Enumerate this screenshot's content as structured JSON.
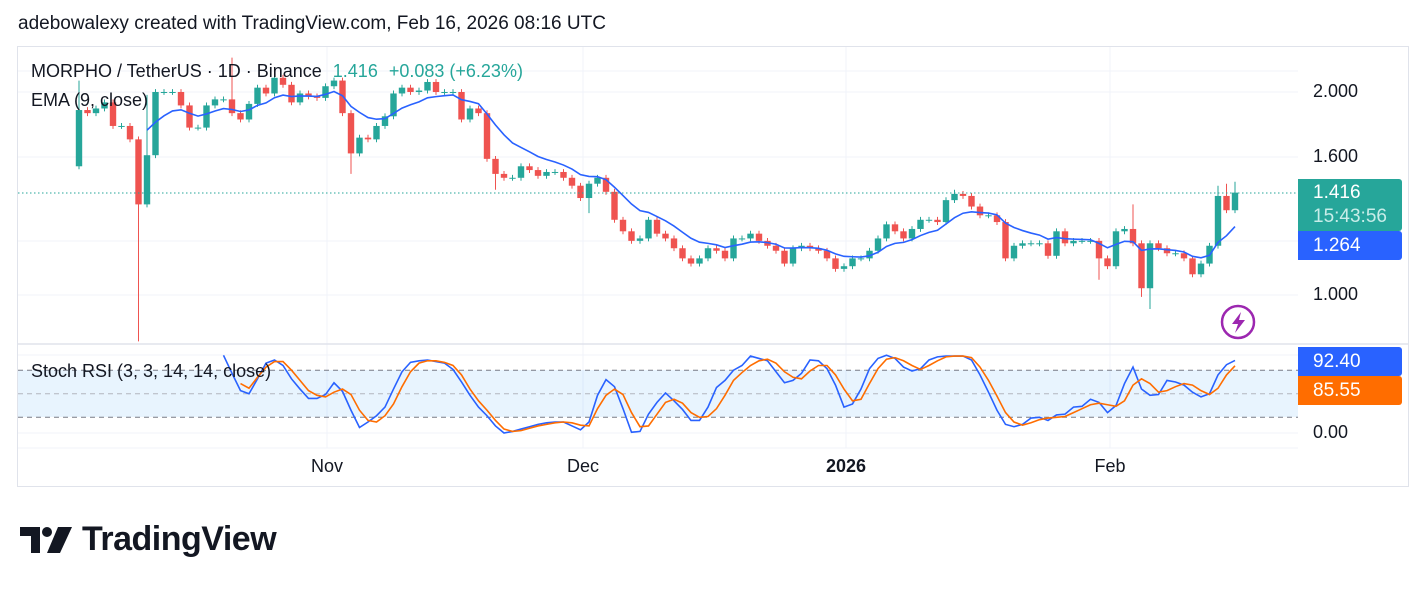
{
  "header": {
    "attribution": "adebowalexy created with TradingView.com, Feb 16, 2026 08:16 UTC"
  },
  "legend": {
    "symbol": "MORPHO / TetherUS · 1D · Binance",
    "last_price": "1.416",
    "change": "+0.083 (+6.23%)",
    "ema_title": "EMA (9, close)",
    "stoch_title": "Stoch RSI (3, 3, 14, 14, close)"
  },
  "price_axis": {
    "ticks": [
      "2.000",
      "1.600",
      "1.000"
    ],
    "last_price": "1.416",
    "countdown": "15:43:56",
    "ema_value": "1.264"
  },
  "stoch_axis": {
    "ticks": [
      "0.00"
    ],
    "k_value": "92.40",
    "d_value": "85.55"
  },
  "time_axis": {
    "ticks": [
      "Nov",
      "Dec",
      "2026",
      "Feb"
    ]
  },
  "icons": {
    "alert": "lightning-icon",
    "logo": "tradingview-logo"
  },
  "logo": {
    "text": "TradingView"
  },
  "colors": {
    "up": "#26a69a",
    "down": "#ef5350",
    "ema": "#2962ff",
    "stoch_k": "#2962ff",
    "stoch_d": "#ff6d00",
    "alert": "#9c27b0"
  },
  "chart_data": [
    {
      "type": "candlestick",
      "symbol": "MORPHO / TetherUS",
      "interval": "1D",
      "x_range": [
        "2025-10-03",
        "2026-02-16"
      ],
      "y_scale": "log",
      "ylim": [
        0.85,
        2.25
      ],
      "grid": true,
      "first_open": 1.55,
      "close": [
        1.88,
        1.86,
        1.89,
        1.93,
        1.78,
        1.78,
        1.7,
        1.36,
        1.61,
        2.0,
        2.0,
        2.0,
        1.91,
        1.77,
        1.77,
        1.91,
        1.95,
        1.95,
        1.86,
        1.82,
        1.92,
        2.03,
        1.99,
        2.1,
        2.05,
        1.93,
        1.99,
        1.97,
        1.96,
        2.04,
        2.08,
        1.86,
        1.62,
        1.71,
        1.7,
        1.78,
        1.84,
        1.99,
        2.03,
        2.0,
        2.01,
        2.07,
        2.0,
        2.0,
        2.0,
        1.82,
        1.89,
        1.86,
        1.59,
        1.51,
        1.49,
        1.49,
        1.55,
        1.53,
        1.5,
        1.52,
        1.52,
        1.49,
        1.45,
        1.39,
        1.46,
        1.49,
        1.42,
        1.29,
        1.24,
        1.2,
        1.21,
        1.29,
        1.23,
        1.21,
        1.17,
        1.13,
        1.11,
        1.13,
        1.17,
        1.16,
        1.13,
        1.21,
        1.21,
        1.23,
        1.2,
        1.18,
        1.16,
        1.11,
        1.17,
        1.18,
        1.17,
        1.16,
        1.13,
        1.09,
        1.1,
        1.13,
        1.13,
        1.16,
        1.21,
        1.27,
        1.24,
        1.21,
        1.25,
        1.29,
        1.29,
        1.28,
        1.38,
        1.41,
        1.4,
        1.35,
        1.31,
        1.31,
        1.28,
        1.13,
        1.18,
        1.19,
        1.19,
        1.19,
        1.14,
        1.24,
        1.19,
        1.2,
        1.2,
        1.2,
        1.13,
        1.1,
        1.24,
        1.25,
        1.19,
        1.02,
        1.19,
        1.17,
        1.15,
        1.15,
        1.13,
        1.07,
        1.11,
        1.18,
        1.4,
        1.333,
        1.416
      ],
      "wicks": {
        "2025-10-03": {
          "high": 2.08
        },
        "2025-10-10": {
          "low": 0.85
        },
        "2025-10-11": {
          "high": 1.98
        },
        "2025-10-21": {
          "high": 2.25
        },
        "2025-11-04": {
          "low": 1.51
        },
        "2025-11-21": {
          "low": 1.43
        },
        "2025-12-02": {
          "low": 1.32
        },
        "2026-01-14": {
          "high": 1.43
        },
        "2026-01-31": {
          "low": 1.05
        },
        "2026-02-04": {
          "high": 1.36
        },
        "2026-02-05": {
          "low": 0.99
        },
        "2026-02-06": {
          "low": 0.95
        },
        "2026-02-14": {
          "high": 1.45
        },
        "2026-02-15": {
          "high": 1.46
        },
        "2026-02-16": {
          "high": 1.47
        }
      },
      "overlay": {
        "name": "EMA (9, close)",
        "period": 9,
        "last_value": 1.264
      }
    },
    {
      "type": "line",
      "title": "Stoch RSI (3, 3, 14, 14, close)",
      "ylim": [
        0,
        100
      ],
      "bands": [
        80,
        50,
        20
      ],
      "k": [
        null,
        null,
        null,
        null,
        null,
        null,
        null,
        null,
        null,
        null,
        null,
        null,
        null,
        null,
        null,
        null,
        null,
        99,
        76,
        54,
        50,
        69,
        89,
        93,
        86,
        69,
        56,
        44,
        44,
        49,
        64,
        53,
        29,
        7,
        14,
        22,
        33,
        56,
        78,
        90,
        92,
        93,
        91,
        89,
        81,
        65,
        48,
        33,
        22,
        9,
        0,
        2,
        5,
        8,
        11,
        13,
        14,
        14,
        9,
        4,
        14,
        48,
        68,
        59,
        31,
        1,
        2,
        24,
        39,
        51,
        41,
        30,
        16,
        16,
        33,
        58,
        67,
        80,
        86,
        98,
        95,
        92,
        78,
        64,
        67,
        76,
        93,
        92,
        82,
        61,
        33,
        37,
        56,
        82,
        95,
        99,
        95,
        84,
        79,
        82,
        93,
        97,
        98,
        98,
        98,
        93,
        74,
        52,
        29,
        11,
        8,
        11,
        19,
        20,
        16,
        23,
        24,
        33,
        34,
        43,
        39,
        26,
        35,
        63,
        84,
        56,
        48,
        49,
        67,
        65,
        61,
        52,
        46,
        50,
        74,
        87,
        92.4
      ],
      "d": [
        null,
        null,
        null,
        null,
        null,
        null,
        null,
        null,
        null,
        null,
        null,
        null,
        null,
        null,
        null,
        null,
        null,
        null,
        null,
        63,
        57,
        71,
        84,
        91,
        91,
        80,
        67,
        54,
        48,
        46,
        52,
        56,
        49,
        29,
        16,
        14,
        22,
        37,
        59,
        78,
        89,
        92,
        92,
        90,
        86,
        74,
        56,
        41,
        29,
        16,
        5,
        2,
        3,
        6,
        9,
        11,
        13,
        14,
        13,
        10,
        9,
        31,
        48,
        56,
        49,
        26,
        8,
        9,
        24,
        39,
        43,
        38,
        26,
        20,
        21,
        31,
        48,
        67,
        77,
        86,
        92,
        94,
        89,
        78,
        71,
        69,
        79,
        86,
        86,
        74,
        56,
        41,
        43,
        63,
        82,
        94,
        96,
        92,
        86,
        81,
        86,
        92,
        97,
        98,
        98,
        96,
        84,
        67,
        47,
        26,
        14,
        10,
        13,
        17,
        19,
        20,
        21,
        26,
        31,
        36,
        38,
        36,
        34,
        41,
        61,
        69,
        63,
        52,
        54,
        59,
        63,
        61,
        54,
        49,
        57,
        74,
        85.55
      ]
    }
  ]
}
